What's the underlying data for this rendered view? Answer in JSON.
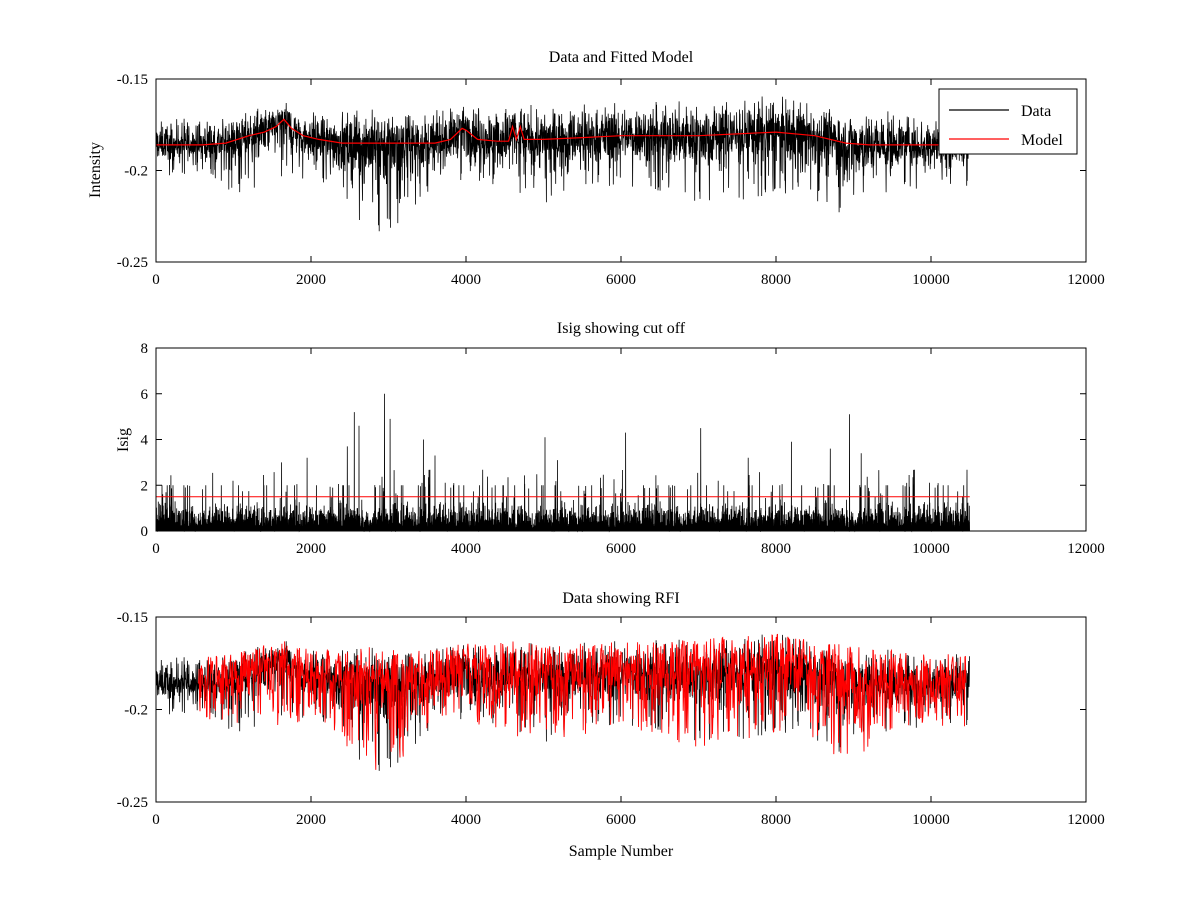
{
  "chart_data": [
    {
      "type": "line",
      "title": "Data and Fitted Model",
      "xlabel": "",
      "ylabel": "Intensity",
      "xlim": [
        0,
        12000
      ],
      "ylim": [
        -0.25,
        -0.15
      ],
      "y_reversed": true,
      "xticks": [
        0,
        2000,
        4000,
        6000,
        8000,
        10000,
        12000
      ],
      "xtick_labels": [
        "0",
        "2000",
        "4000",
        "6000",
        "8000",
        "10000",
        "12000"
      ],
      "yticks": [
        -0.15,
        -0.2,
        -0.25
      ],
      "ytick_labels": [
        "-0.15",
        "-0.2",
        "-0.25"
      ],
      "legend": {
        "position": "top-right",
        "entries": [
          {
            "name": "Data",
            "color": "#000000"
          },
          {
            "name": "Model",
            "color": "#ff0000"
          }
        ]
      },
      "series": [
        {
          "name": "Data",
          "color": "#000000",
          "n_samples": 10500,
          "envelope_x": [
            0,
            500,
            1000,
            1500,
            1650,
            2000,
            2500,
            2600,
            2950,
            3500,
            4000,
            4600,
            5000,
            6000,
            7000,
            8000,
            8500,
            8950,
            9500,
            10000,
            10500
          ],
          "envelope_upper": [
            -0.173,
            -0.171,
            -0.17,
            -0.164,
            -0.162,
            -0.168,
            -0.167,
            -0.166,
            -0.166,
            -0.168,
            -0.164,
            -0.163,
            -0.165,
            -0.163,
            -0.162,
            -0.159,
            -0.163,
            -0.165,
            -0.168,
            -0.169,
            -0.17
          ],
          "envelope_lower": [
            -0.203,
            -0.202,
            -0.213,
            -0.207,
            -0.21,
            -0.205,
            -0.225,
            -0.229,
            -0.236,
            -0.214,
            -0.206,
            -0.214,
            -0.22,
            -0.208,
            -0.221,
            -0.213,
            -0.22,
            -0.23,
            -0.212,
            -0.209,
            -0.21
          ]
        },
        {
          "name": "Model",
          "color": "#ff0000",
          "x": [
            0,
            600,
            900,
            1200,
            1400,
            1550,
            1650,
            1750,
            1900,
            2100,
            2400,
            2800,
            3200,
            3600,
            3800,
            3950,
            4000,
            4150,
            4400,
            4550,
            4600,
            4650,
            4700,
            4750,
            5000,
            5500,
            6000,
            7000,
            7500,
            8000,
            8500,
            8900,
            9200,
            9700,
            10200
          ],
          "y": [
            -0.186,
            -0.186,
            -0.185,
            -0.181,
            -0.179,
            -0.176,
            -0.172,
            -0.177,
            -0.181,
            -0.183,
            -0.185,
            -0.185,
            -0.185,
            -0.185,
            -0.183,
            -0.177,
            -0.178,
            -0.183,
            -0.184,
            -0.184,
            -0.176,
            -0.183,
            -0.176,
            -0.183,
            -0.183,
            -0.182,
            -0.181,
            -0.181,
            -0.18,
            -0.179,
            -0.181,
            -0.185,
            -0.186,
            -0.186,
            -0.186
          ]
        }
      ]
    },
    {
      "type": "line",
      "title": "Isig showing cut off",
      "xlabel": "",
      "ylabel": "Isig",
      "xlim": [
        0,
        12000
      ],
      "ylim": [
        0,
        8
      ],
      "xticks": [
        0,
        2000,
        4000,
        6000,
        8000,
        10000,
        12000
      ],
      "xtick_labels": [
        "0",
        "2000",
        "4000",
        "6000",
        "8000",
        "10000",
        "12000"
      ],
      "yticks": [
        0,
        2,
        4,
        6,
        8
      ],
      "ytick_labels": [
        "0",
        "2",
        "4",
        "6",
        "8"
      ],
      "series": [
        {
          "name": "Isig",
          "color": "#000000",
          "n_samples": 10500,
          "typical_max": 2.0,
          "peaks_x": [
            1620,
            1950,
            2470,
            2560,
            2620,
            2950,
            3020,
            3450,
            3600,
            5020,
            5180,
            6060,
            7030,
            7640,
            8200,
            8700,
            8950,
            9100
          ],
          "peaks_y": [
            3.0,
            3.2,
            3.7,
            5.2,
            4.6,
            6.0,
            4.9,
            4.0,
            3.3,
            4.1,
            3.1,
            4.3,
            4.5,
            3.2,
            3.9,
            3.6,
            5.1,
            3.4
          ]
        },
        {
          "name": "Cut off",
          "color": "#ff0000",
          "x": [
            0,
            10500
          ],
          "y": [
            1.5,
            1.5
          ]
        }
      ]
    },
    {
      "type": "scatter",
      "title": "Data showing RFI",
      "xlabel": "Sample Number",
      "ylabel": "",
      "xlim": [
        0,
        12000
      ],
      "ylim": [
        -0.25,
        -0.15
      ],
      "y_reversed": true,
      "xticks": [
        0,
        2000,
        4000,
        6000,
        8000,
        10000,
        12000
      ],
      "xtick_labels": [
        "0",
        "2000",
        "4000",
        "6000",
        "8000",
        "10000",
        "12000"
      ],
      "yticks": [
        -0.15,
        -0.2,
        -0.25
      ],
      "ytick_labels": [
        "-0.15",
        "-0.2",
        "-0.25"
      ],
      "series": [
        {
          "name": "Data",
          "color": "#000000",
          "n_samples": 10500
        },
        {
          "name": "RFI",
          "color": "#ff0000",
          "marker": "+",
          "x_range": [
            550,
            10450
          ],
          "extremes_x": [
            2600,
            2950,
            4150,
            8150,
            8900
          ],
          "extremes_y": [
            -0.229,
            -0.236,
            -0.163,
            -0.163,
            -0.229
          ]
        }
      ]
    }
  ]
}
